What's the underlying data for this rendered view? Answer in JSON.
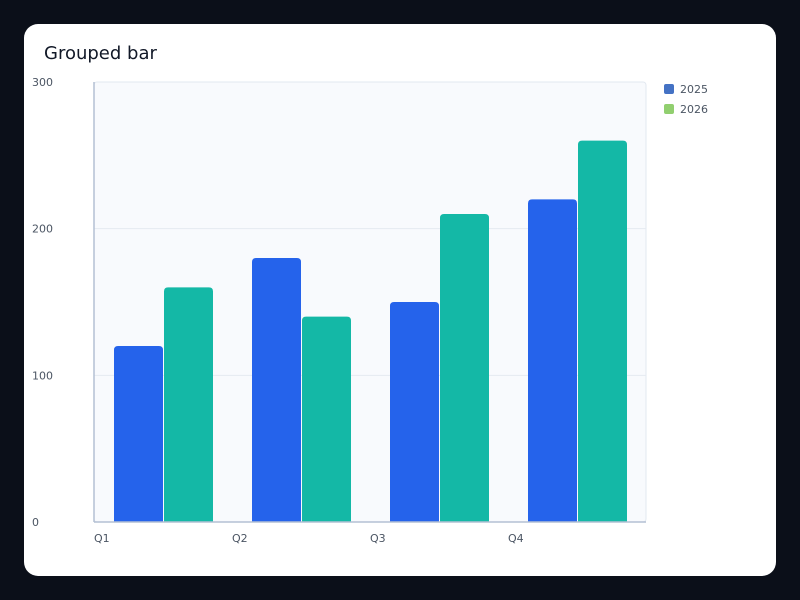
{
  "chart_data": {
    "type": "bar",
    "title": "Grouped bar",
    "categories": [
      "Q1",
      "Q2",
      "Q3",
      "Q4"
    ],
    "series": [
      {
        "name": "2025",
        "values": [
          120,
          180,
          150,
          220
        ]
      },
      {
        "name": "2026",
        "values": [
          160,
          140,
          210,
          260
        ]
      }
    ],
    "yticks": [
      0,
      100,
      200,
      300
    ],
    "ylim": [
      0,
      300
    ],
    "grid": true,
    "legend": "top-right",
    "bar_colors": [
      "#2563eb",
      "#14b8a6"
    ],
    "legend_colors": [
      "#4472c4",
      "#91cf6f"
    ]
  }
}
